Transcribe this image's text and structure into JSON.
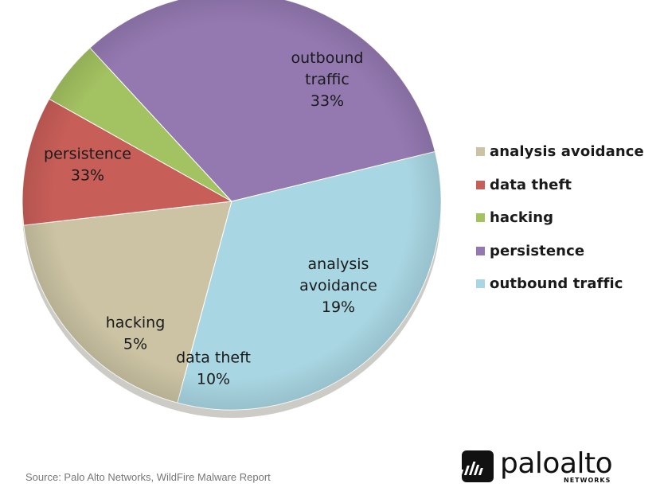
{
  "chart_data": {
    "type": "pie",
    "categories": [
      "analysis avoidance",
      "data theft",
      "hacking",
      "persistence",
      "outbound traffic"
    ],
    "values": [
      19,
      10,
      5,
      33,
      33
    ],
    "value_labels": [
      "19%",
      "10%",
      "5%",
      "33%",
      "33%"
    ],
    "slice_labels": [
      [
        "analysis",
        "avoidance",
        "19%"
      ],
      [
        "data theft",
        "10%"
      ],
      [
        "hacking",
        "5%"
      ],
      [
        "persistence",
        "33%"
      ],
      [
        "outbound",
        "traffic",
        "33%"
      ]
    ],
    "colors": [
      "#cbc3a3",
      "#c85e58",
      "#a3c261",
      "#9479b1",
      "#a8d6e2"
    ],
    "legend_position": "right",
    "start_angle_deg": 105,
    "direction": "clockwise"
  },
  "legend": {
    "items": [
      {
        "label": "analysis avoidance",
        "color": "#cbc3a3"
      },
      {
        "label": "data theft",
        "color": "#c85e58"
      },
      {
        "label": "hacking",
        "color": "#a3c261"
      },
      {
        "label": "persistence",
        "color": "#9479b1"
      },
      {
        "label": "outbound traffic",
        "color": "#a8d6e2"
      }
    ]
  },
  "footer": {
    "source": "Source: Palo Alto Networks, WildFire Malware Report"
  },
  "logo": {
    "wordmark": "paloalto",
    "subtitle": "NETWORKS",
    "icon": "paloalto-logo-icon"
  }
}
